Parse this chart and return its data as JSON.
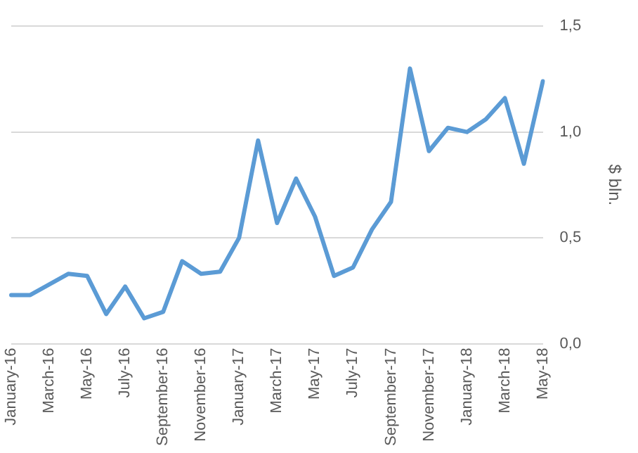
{
  "chart_data": {
    "type": "line",
    "ylabel": "$ bln.",
    "categories": [
      "January-16",
      null,
      "March-16",
      null,
      "May-16",
      null,
      "July-16",
      null,
      "September-16",
      null,
      "November-16",
      null,
      "January-17",
      null,
      "March-17",
      null,
      "May-17",
      null,
      "July-17",
      null,
      "September-17",
      null,
      "November-17",
      null,
      "January-18",
      null,
      "March-18",
      null,
      "May-18"
    ],
    "series": [
      {
        "color": "#5b9bd5",
        "values": [
          0.23,
          0.23,
          0.28,
          0.33,
          0.32,
          0.14,
          0.27,
          0.12,
          0.15,
          0.39,
          0.33,
          0.34,
          0.5,
          0.96,
          0.57,
          0.78,
          0.6,
          0.32,
          0.36,
          0.54,
          0.67,
          1.3,
          0.91,
          1.02,
          1.0,
          1.06,
          1.16,
          0.85,
          1.24
        ]
      }
    ],
    "ylim": [
      0,
      1.5
    ],
    "yticks": [
      {
        "value": 0,
        "label": "0,0"
      },
      {
        "value": 0.5,
        "label": "0,5"
      },
      {
        "value": 1,
        "label": "1,0"
      },
      {
        "value": 1.5,
        "label": "1,5"
      }
    ],
    "grid": "y",
    "legend": false,
    "marker": "none",
    "line_style": "solid"
  }
}
